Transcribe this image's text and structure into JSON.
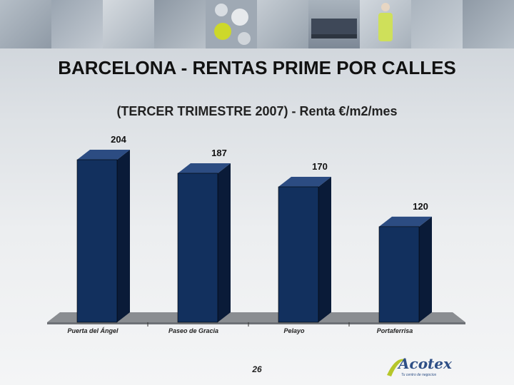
{
  "page": {
    "title": "BARCELONA - RENTAS PRIME POR CALLES",
    "subtitle": "(TERCER TRIMESTRE 2007) - Renta €/m2/mes",
    "page_number": "26"
  },
  "logo": {
    "brand": "Acotex",
    "tagline": "Tu centro de negocios"
  },
  "colors": {
    "bar_front": "#12305e",
    "bar_side": "#0a1b38",
    "bar_top": "#2c4c82",
    "floor": "#8a8d91"
  },
  "chart_data": {
    "type": "bar",
    "categories": [
      "Puerta del Ángel",
      "Paseo de Gracia",
      "Pelayo",
      "Portaferrisa"
    ],
    "values": [
      204,
      187,
      170,
      120
    ],
    "data_labels": [
      "204",
      "187",
      "170",
      "120"
    ],
    "title": "BARCELONA - RENTAS PRIME POR CALLES",
    "subtitle": "(TERCER TRIMESTRE 2007) - Renta €/m2/mes",
    "ylim": [
      0,
      204
    ],
    "grid": false,
    "legend": "none",
    "style": "3d-bar"
  }
}
